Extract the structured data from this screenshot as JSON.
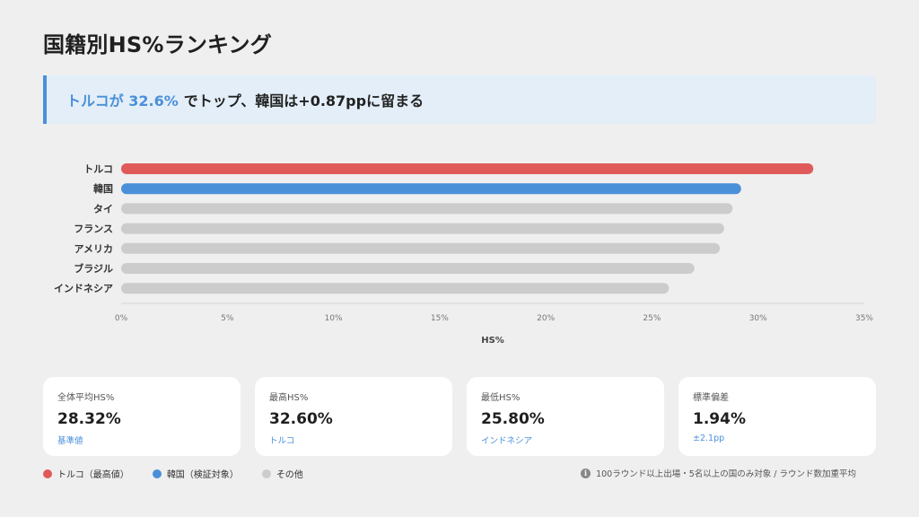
{
  "title": "国籍別HS%ランキング",
  "headline": {
    "accent": "トルコが 32.6%",
    "rest": "でトップ、韓国は+0.87ppに留まる",
    "accent_color": "#4a90d9"
  },
  "chart_data": {
    "type": "bar",
    "orientation": "horizontal",
    "categories": [
      "トルコ",
      "韓国",
      "タイ",
      "フランス",
      "アメリカ",
      "ブラジル",
      "インドネシア"
    ],
    "values": [
      32.6,
      29.2,
      28.8,
      28.4,
      28.2,
      27.0,
      25.8
    ],
    "colors": [
      "#e05a5a",
      "#4a90d9",
      "#cccccc",
      "#cccccc",
      "#cccccc",
      "#cccccc",
      "#cccccc"
    ],
    "xlim": [
      0,
      35
    ],
    "xticks": [
      "0%",
      "5%",
      "10%",
      "15%",
      "20%",
      "25%",
      "30%",
      "35%"
    ],
    "xlabel": "HS%",
    "ylabel": "",
    "grid": false,
    "legend": "bottom-left"
  },
  "cards": [
    {
      "label": "全体平均HS%",
      "value": "28.32%",
      "sub": "基準値"
    },
    {
      "label": "最高HS%",
      "value": "32.60%",
      "sub": "トルコ"
    },
    {
      "label": "最低HS%",
      "value": "25.80%",
      "sub": "インドネシア"
    },
    {
      "label": "標準偏差",
      "value": "1.94%",
      "sub": "±2.1pp"
    }
  ],
  "legend": [
    {
      "label": "トルコ（最高値）",
      "color": "#e05a5a"
    },
    {
      "label": "韓国（検証対象）",
      "color": "#4a90d9"
    },
    {
      "label": "その他",
      "color": "#cccccc"
    }
  ],
  "footnote": {
    "icon": "info-icon",
    "text": "100ラウンド以上出場・5名以上の国のみ対象 / ラウンド数加重平均"
  }
}
